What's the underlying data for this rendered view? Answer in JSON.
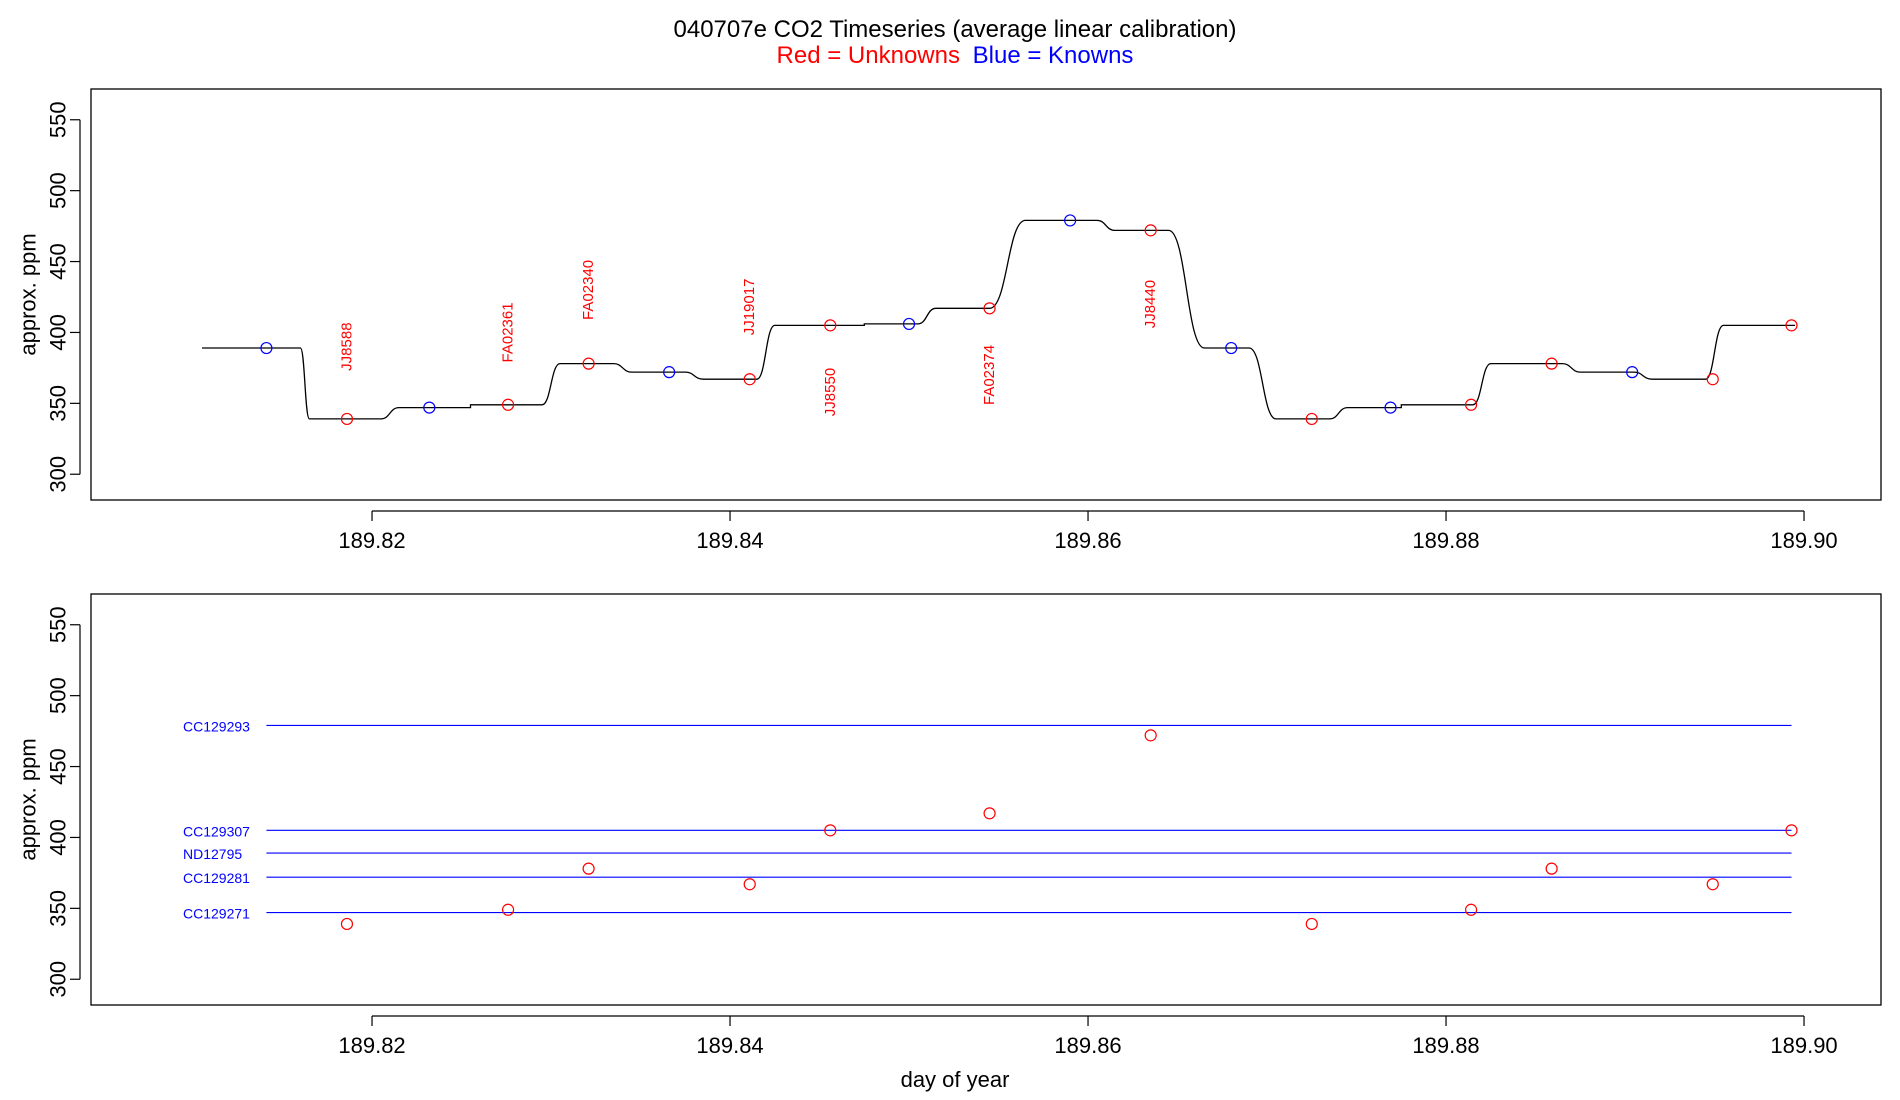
{
  "chart_data": {
    "type": "line",
    "title": "040707e   CO2 Timeseries (average linear calibration)",
    "subtitle": {
      "red": "Red = Unknowns",
      "blue": "Blue = Knowns"
    },
    "colors": {
      "unknown": "#ff0000",
      "known": "#0000ff",
      "trace": "#000000",
      "axis": "#000000"
    },
    "xlim": [
      189.8043,
      189.9043
    ],
    "ylim": [
      291,
      559
    ],
    "xticks": [
      189.82,
      189.84,
      189.86,
      189.88,
      189.9
    ],
    "xtick_labels": [
      "189.82",
      "189.84",
      "189.86",
      "189.88",
      "189.90"
    ],
    "yticks": [
      300,
      350,
      400,
      450,
      500,
      550
    ],
    "ytick_labels": [
      "300",
      "350",
      "400",
      "450",
      "500",
      "550"
    ],
    "xlabel": "day of year",
    "ylabel": "approx. ppm",
    "panels": [
      {
        "name": "timeseries",
        "trace": {
          "steps": [
            {
              "x0": 189.8105,
              "x1": 189.816,
              "y": 389
            },
            {
              "x0": 189.8165,
              "x1": 189.8205,
              "y": 339
            },
            {
              "x0": 189.8215,
              "x1": 189.8255,
              "y": 347
            },
            {
              "x0": 189.8255,
              "x1": 189.8295,
              "y": 349
            },
            {
              "x0": 189.8305,
              "x1": 189.8335,
              "y": 378
            },
            {
              "x0": 189.8345,
              "x1": 189.8375,
              "y": 372
            },
            {
              "x0": 189.8385,
              "x1": 189.8415,
              "y": 367
            },
            {
              "x0": 189.8425,
              "x1": 189.8475,
              "y": 405
            },
            {
              "x0": 189.8475,
              "x1": 189.8505,
              "y": 406
            },
            {
              "x0": 189.8515,
              "x1": 189.8545,
              "y": 417
            },
            {
              "x0": 189.8565,
              "x1": 189.8605,
              "y": 479
            },
            {
              "x0": 189.8615,
              "x1": 189.8645,
              "y": 472
            },
            {
              "x0": 189.8665,
              "x1": 189.869,
              "y": 389
            },
            {
              "x0": 189.8705,
              "x1": 189.8735,
              "y": 339
            },
            {
              "x0": 189.8745,
              "x1": 189.8775,
              "y": 347
            },
            {
              "x0": 189.8775,
              "x1": 189.8815,
              "y": 349
            },
            {
              "x0": 189.8825,
              "x1": 189.8865,
              "y": 378
            },
            {
              "x0": 189.8875,
              "x1": 189.8905,
              "y": 372
            },
            {
              "x0": 189.8915,
              "x1": 189.8945,
              "y": 367
            },
            {
              "x0": 189.8955,
              "x1": 189.8995,
              "y": 405
            }
          ]
        },
        "points": [
          {
            "x": 189.8141,
            "y": 389,
            "kind": "known"
          },
          {
            "x": 189.8186,
            "y": 339,
            "kind": "unknown"
          },
          {
            "x": 189.8232,
            "y": 347,
            "kind": "known"
          },
          {
            "x": 189.8276,
            "y": 349,
            "kind": "unknown"
          },
          {
            "x": 189.8321,
            "y": 378,
            "kind": "unknown"
          },
          {
            "x": 189.8366,
            "y": 372,
            "kind": "known"
          },
          {
            "x": 189.8411,
            "y": 367,
            "kind": "unknown"
          },
          {
            "x": 189.8456,
            "y": 405,
            "kind": "unknown"
          },
          {
            "x": 189.85,
            "y": 406,
            "kind": "known"
          },
          {
            "x": 189.8545,
            "y": 417,
            "kind": "unknown"
          },
          {
            "x": 189.859,
            "y": 479,
            "kind": "known"
          },
          {
            "x": 189.8635,
            "y": 472,
            "kind": "unknown"
          },
          {
            "x": 189.868,
            "y": 389,
            "kind": "known"
          },
          {
            "x": 189.8725,
            "y": 339,
            "kind": "unknown"
          },
          {
            "x": 189.8769,
            "y": 347,
            "kind": "known"
          },
          {
            "x": 189.8814,
            "y": 349,
            "kind": "unknown"
          },
          {
            "x": 189.8859,
            "y": 378,
            "kind": "unknown"
          },
          {
            "x": 189.8904,
            "y": 372,
            "kind": "known"
          },
          {
            "x": 189.8949,
            "y": 367,
            "kind": "unknown"
          },
          {
            "x": 189.8993,
            "y": 405,
            "kind": "unknown"
          }
        ],
        "sample_labels": [
          {
            "text": "JJ8588",
            "x": 189.8186,
            "y": 390
          },
          {
            "text": "FA02361",
            "x": 189.8276,
            "y": 400
          },
          {
            "text": "FA02340",
            "x": 189.8321,
            "y": 430
          },
          {
            "text": "JJ19017",
            "x": 189.8411,
            "y": 418
          },
          {
            "text": "JJ8550",
            "x": 189.8456,
            "y": 358
          },
          {
            "text": "FA02374",
            "x": 189.8545,
            "y": 370
          },
          {
            "text": "JJ8440",
            "x": 189.8635,
            "y": 420
          }
        ]
      },
      {
        "name": "standards",
        "standards": [
          {
            "name": "CC129293",
            "value": 479
          },
          {
            "name": "CC129307",
            "value": 405
          },
          {
            "name": "ND12795",
            "value": 389
          },
          {
            "name": "CC129281",
            "value": 372
          },
          {
            "name": "CC129271",
            "value": 347
          }
        ],
        "std_x": [
          189.8141,
          189.8993
        ],
        "points": [
          {
            "x": 189.8186,
            "y": 339
          },
          {
            "x": 189.8276,
            "y": 349
          },
          {
            "x": 189.8321,
            "y": 378
          },
          {
            "x": 189.8411,
            "y": 367
          },
          {
            "x": 189.8456,
            "y": 405
          },
          {
            "x": 189.8545,
            "y": 417
          },
          {
            "x": 189.8635,
            "y": 472
          },
          {
            "x": 189.8725,
            "y": 339
          },
          {
            "x": 189.8814,
            "y": 349
          },
          {
            "x": 189.8859,
            "y": 378
          },
          {
            "x": 189.8949,
            "y": 367
          },
          {
            "x": 189.8993,
            "y": 405
          }
        ]
      }
    ]
  }
}
